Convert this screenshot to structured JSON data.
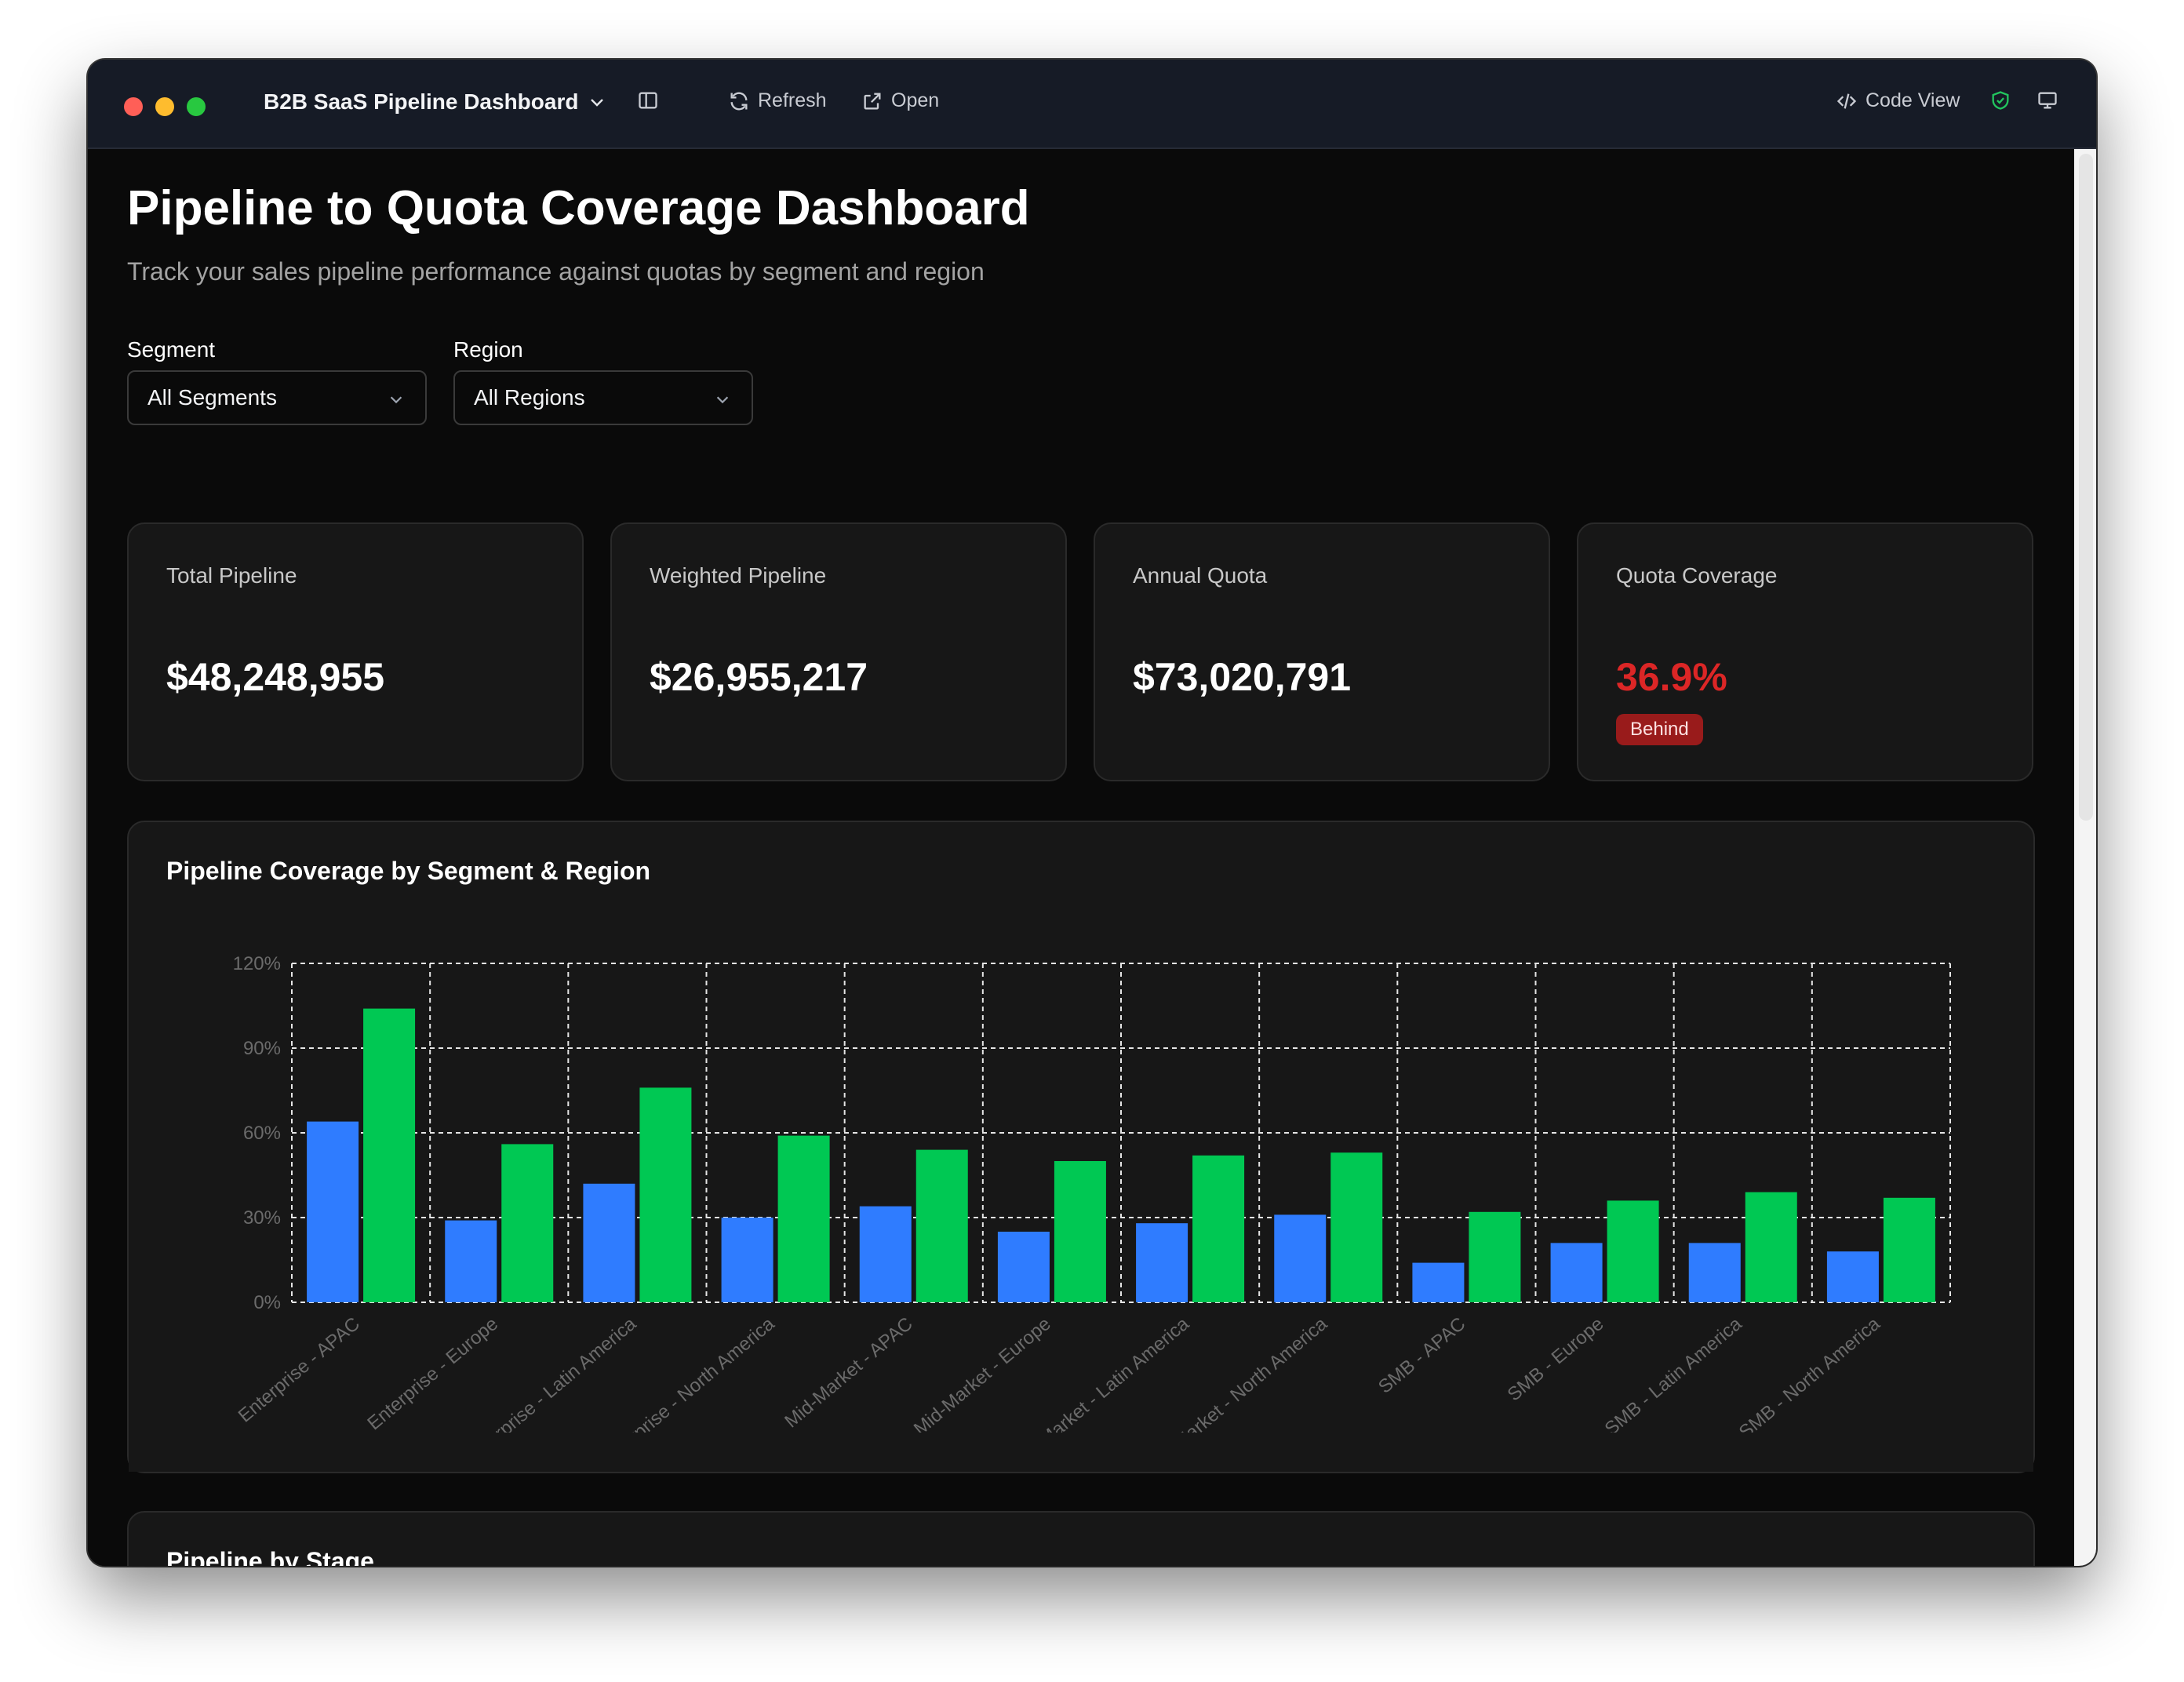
{
  "titlebar": {
    "title": "B2B SaaS Pipeline Dashboard",
    "refresh": "Refresh",
    "open": "Open",
    "code_view": "Code View"
  },
  "page": {
    "title": "Pipeline to Quota Coverage Dashboard",
    "subtitle": "Track your sales pipeline performance against quotas by segment and region"
  },
  "filters": {
    "segment_label": "Segment",
    "segment_value": "All Segments",
    "region_label": "Region",
    "region_value": "All Regions"
  },
  "kpis": [
    {
      "title": "Total Pipeline",
      "value": "$48,248,955"
    },
    {
      "title": "Weighted Pipeline",
      "value": "$26,955,217"
    },
    {
      "title": "Annual Quota",
      "value": "$73,020,791"
    },
    {
      "title": "Quota Coverage",
      "value": "36.9%",
      "badge": "Behind"
    }
  ],
  "coverage_panel": {
    "title": "Pipeline Coverage by Segment & Region"
  },
  "stage_panel": {
    "title": "Pipeline by Stage"
  },
  "colors": {
    "series_a": "#2f7cff",
    "series_b": "#00c853",
    "behind": "#dc2626"
  },
  "chart_data": {
    "type": "bar",
    "categories": [
      "Enterprise - APAC",
      "Enterprise - Europe",
      "Enterprise - Latin America",
      "Enterprise - North America",
      "Mid-Market - APAC",
      "Mid-Market - Europe",
      "Mid-Market - Latin America",
      "Mid-Market - North America",
      "SMB - APAC",
      "SMB - Europe",
      "SMB - Latin America",
      "SMB - North America"
    ],
    "series": [
      {
        "values": [
          64,
          29,
          42,
          30,
          34,
          25,
          28,
          31,
          14,
          21,
          21,
          18
        ],
        "color": "#2f7cff"
      },
      {
        "values": [
          104,
          56,
          76,
          59,
          54,
          50,
          52,
          53,
          32,
          36,
          39,
          37
        ],
        "color": "#00c853"
      }
    ],
    "y_ticks": [
      "0%",
      "30%",
      "60%",
      "90%",
      "120%"
    ],
    "ylim": [
      0,
      120
    ],
    "grid": true,
    "legend": "none"
  }
}
